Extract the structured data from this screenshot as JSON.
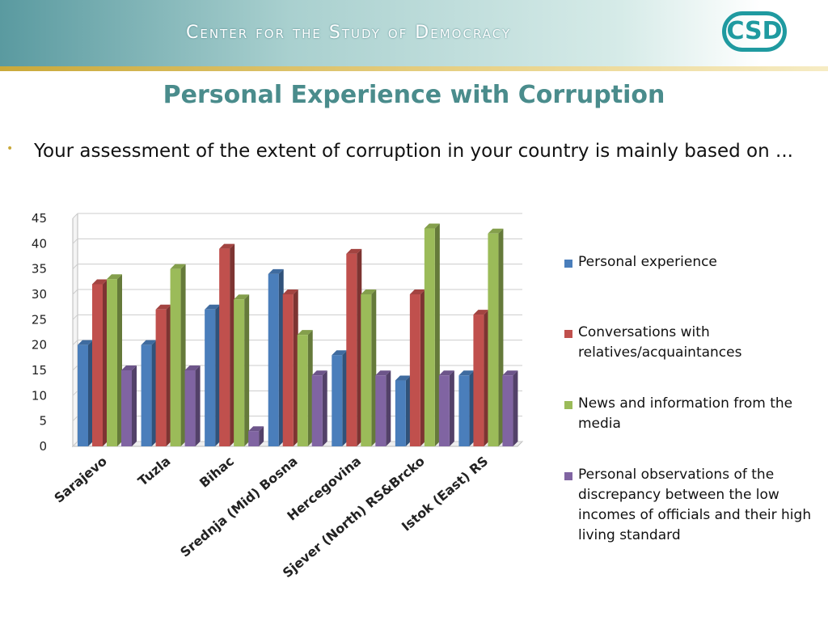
{
  "header": {
    "org": "Center for the Study of Democracy",
    "logo": "CSD"
  },
  "title": "Personal Experience with Corruption",
  "bullet": "Your assessment of the extent of corruption in your country is mainly based on ...",
  "chart_data": {
    "type": "bar3d",
    "categories": [
      "Sarajevo",
      "Tuzla",
      "Bihac",
      "Srednja (Mid) Bosna",
      "Hercegovina",
      "Sjever (North) RS&Brcko",
      "Istok (East) RS"
    ],
    "series": [
      {
        "name": "Personal experience",
        "color": "#4a7ebb",
        "values": [
          20,
          20,
          27,
          34,
          18,
          13,
          14
        ]
      },
      {
        "name": "Conversations with relatives/acquaintances",
        "color": "#c0504d",
        "values": [
          32,
          27,
          39,
          30,
          38,
          30,
          26
        ]
      },
      {
        "name": "News and information from the media",
        "color": "#9bbb59",
        "values": [
          33,
          35,
          29,
          22,
          30,
          43,
          42
        ]
      },
      {
        "name": "Personal observations of the discrepancy between the low incomes of officials and their high living standard",
        "color": "#8064a2",
        "values": [
          15,
          15,
          3,
          14,
          14,
          14,
          14
        ]
      }
    ],
    "ylim": [
      0,
      45
    ],
    "yticks": [
      0,
      5,
      10,
      15,
      20,
      25,
      30,
      35,
      40,
      45
    ],
    "grid": true,
    "legend": "right"
  }
}
